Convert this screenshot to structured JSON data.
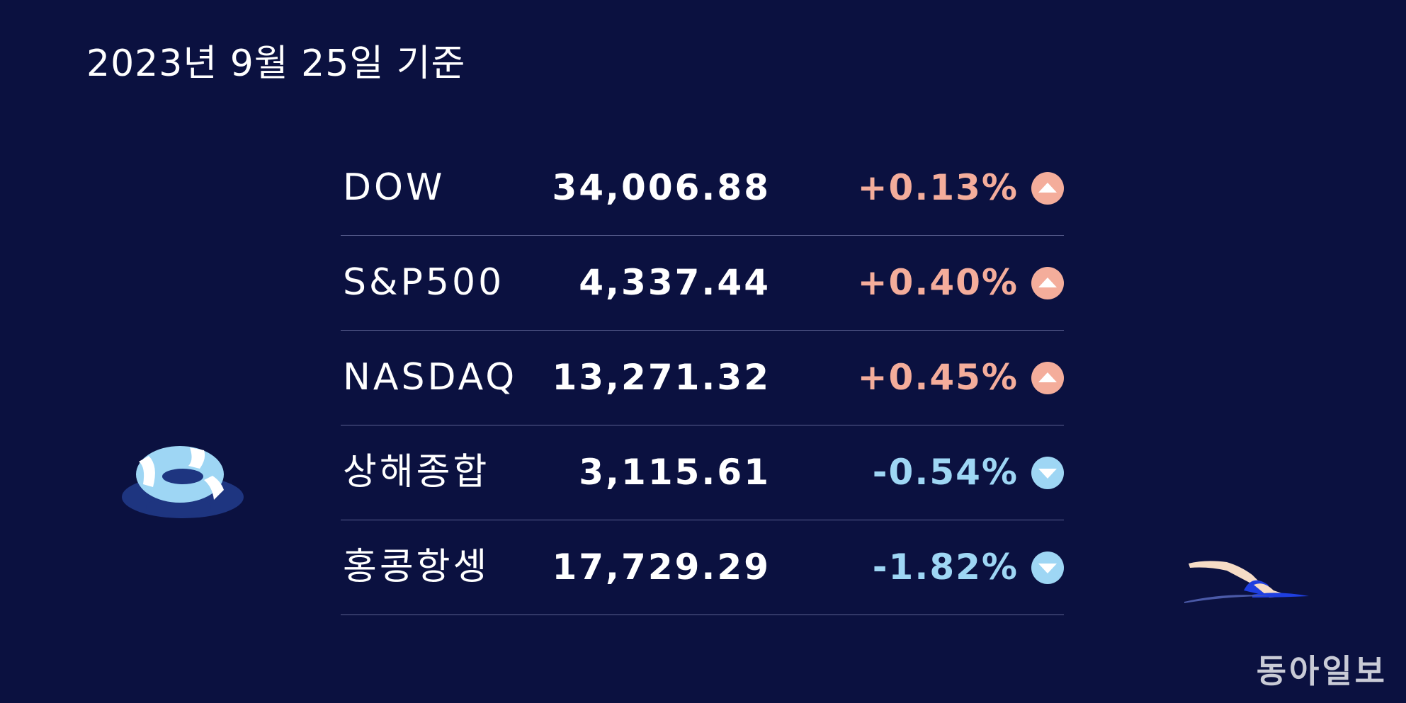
{
  "date_label": "2023년 9월 25일 기준",
  "rows": [
    {
      "name": "DOW",
      "value": "34,006.88",
      "change": "+0.13%",
      "direction": "up",
      "arrow_icon": "arrow-up-icon"
    },
    {
      "name": "S&P500",
      "value": "4,337.44",
      "change": "+0.40%",
      "direction": "up",
      "arrow_icon": "arrow-up-icon"
    },
    {
      "name": "NASDAQ",
      "value": "13,271.32",
      "change": "+0.45%",
      "direction": "up",
      "arrow_icon": "arrow-up-icon"
    },
    {
      "name": "상해종합",
      "value": "3,115.61",
      "change": "-0.54%",
      "direction": "down",
      "arrow_icon": "arrow-down-icon"
    },
    {
      "name": "홍콩항셍",
      "value": "17,729.29",
      "change": "-1.82%",
      "direction": "down",
      "arrow_icon": "arrow-down-icon"
    }
  ],
  "colors": {
    "background": "#0b1140",
    "up": "#f4ad9b",
    "down": "#9ed6f4",
    "divider": "#5a6090"
  },
  "decorations": [
    "swim-ring-icon",
    "swimmer-icon"
  ],
  "logo_text": "동아일보"
}
